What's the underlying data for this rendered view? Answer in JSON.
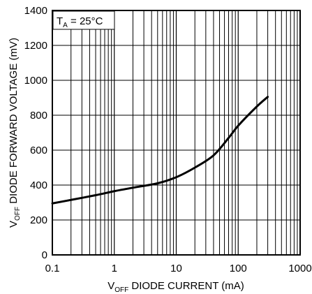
{
  "chart_data": {
    "type": "line",
    "x_scale": "log",
    "xlim": [
      0.1,
      1000
    ],
    "ylim": [
      0,
      1400
    ],
    "x_ticks": [
      0.1,
      1,
      10,
      100,
      1000
    ],
    "x_tick_labels": [
      "0.1",
      "1",
      "10",
      "100",
      "1000"
    ],
    "y_ticks": [
      0,
      200,
      400,
      600,
      800,
      1000,
      1200,
      1400
    ],
    "y_tick_labels": [
      "0",
      "200",
      "400",
      "600",
      "800",
      "1000",
      "1200",
      "1400"
    ],
    "xlabel": {
      "v": "V",
      "sub": "OFF",
      "rest": " DIODE CURRENT (mA)"
    },
    "ylabel": {
      "v": "V",
      "sub": "OFF",
      "rest": " DIODE FORWARD VOLTAGE (mV)"
    },
    "annotation": {
      "t": "T",
      "sub": "A",
      "rest": " = 25°C"
    },
    "grid": true,
    "series": [
      {
        "x": [
          0.1,
          0.2,
          0.5,
          1,
          2,
          5,
          10,
          20,
          40,
          70,
          100,
          200,
          300
        ],
        "y": [
          295,
          315,
          342,
          365,
          385,
          410,
          445,
          500,
          570,
          670,
          740,
          850,
          905
        ]
      }
    ],
    "colors": {
      "line": "#000000",
      "grid": "#000000",
      "background": "#ffffff"
    }
  }
}
